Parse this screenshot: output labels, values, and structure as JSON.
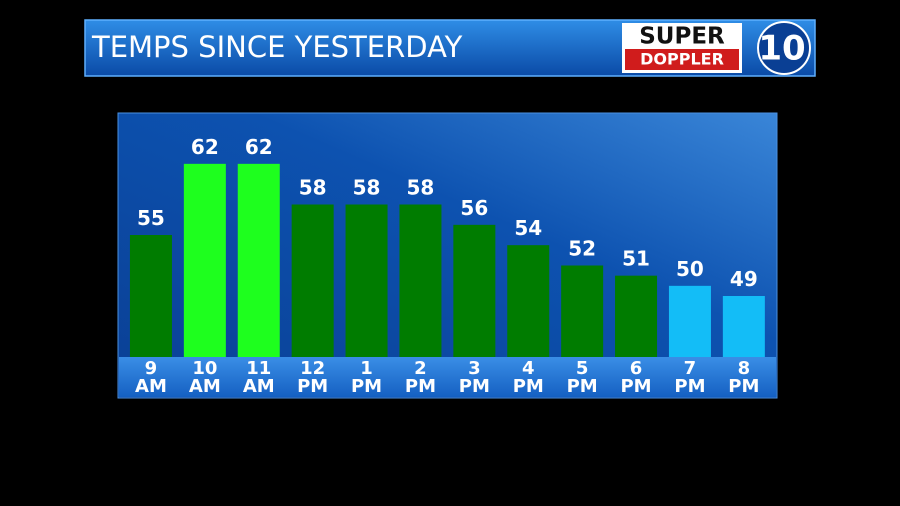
{
  "chart_data": {
    "type": "bar",
    "title": "TEMPS SINCE YESTERDAY",
    "logo": {
      "top": "SUPER",
      "bottom": "DOPPLER",
      "number": "10"
    },
    "categories": [
      "9 AM",
      "10 AM",
      "11 AM",
      "12 PM",
      "1 PM",
      "2 PM",
      "3 PM",
      "4 PM",
      "5 PM",
      "6 PM",
      "7 PM",
      "8 PM"
    ],
    "values": [
      55,
      62,
      62,
      58,
      58,
      58,
      56,
      54,
      52,
      51,
      50,
      49
    ],
    "colors": [
      "#007c00",
      "#1eff1e",
      "#1eff1e",
      "#007c00",
      "#007c00",
      "#007c00",
      "#007c00",
      "#007c00",
      "#007c00",
      "#007c00",
      "#13bdf7",
      "#13bdf7"
    ],
    "ylim": [
      43,
      67
    ]
  }
}
